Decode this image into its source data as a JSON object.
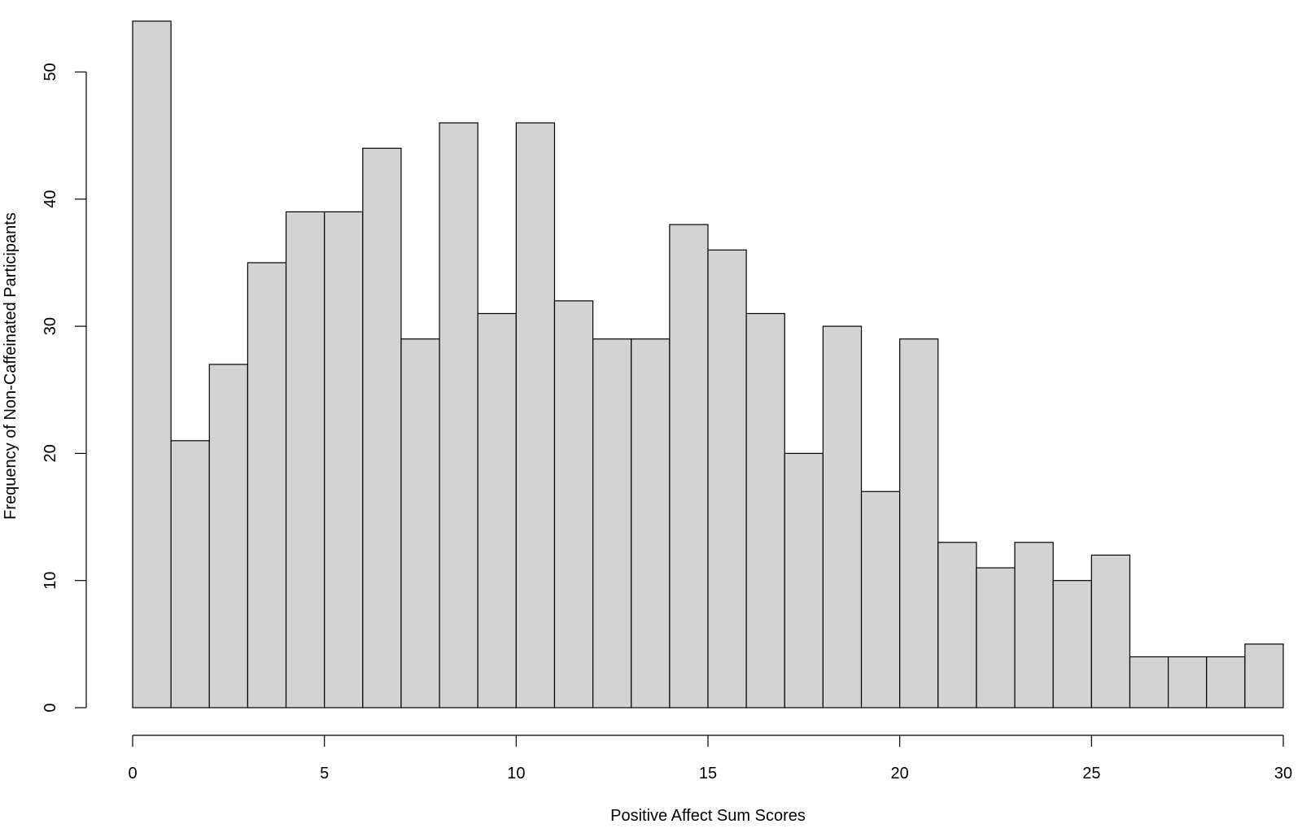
{
  "chart_data": {
    "type": "bar",
    "subtype": "histogram",
    "title": "",
    "xlabel": "Positive Affect Sum Scores",
    "ylabel": "Frequency of Non-Caffeinated Participants",
    "bin_edges": [
      0,
      1,
      2,
      3,
      4,
      5,
      6,
      7,
      8,
      9,
      10,
      11,
      12,
      13,
      14,
      15,
      16,
      17,
      18,
      19,
      20,
      21,
      22,
      23,
      24,
      25,
      26,
      27,
      28,
      29,
      30
    ],
    "values": [
      54,
      21,
      27,
      35,
      39,
      39,
      44,
      29,
      46,
      31,
      46,
      32,
      29,
      29,
      38,
      36,
      31,
      20,
      30,
      17,
      29,
      13,
      11,
      13,
      10,
      12,
      4,
      4,
      4,
      5
    ],
    "xlim": [
      0,
      30
    ],
    "ylim": [
      0,
      55
    ],
    "x_ticks": [
      0,
      5,
      10,
      15,
      20,
      25,
      30
    ],
    "x_tick_labels": [
      "0",
      "5",
      "10",
      "15",
      "20",
      "25",
      "30"
    ],
    "y_ticks": [
      0,
      10,
      20,
      30,
      40,
      50
    ],
    "y_tick_labels": [
      "0",
      "10",
      "20",
      "30",
      "40",
      "50"
    ],
    "grid": false,
    "legend": "none",
    "colors": {
      "bar_fill": "#d3d3d3",
      "bar_stroke": "#000000",
      "background": "#ffffff"
    }
  }
}
